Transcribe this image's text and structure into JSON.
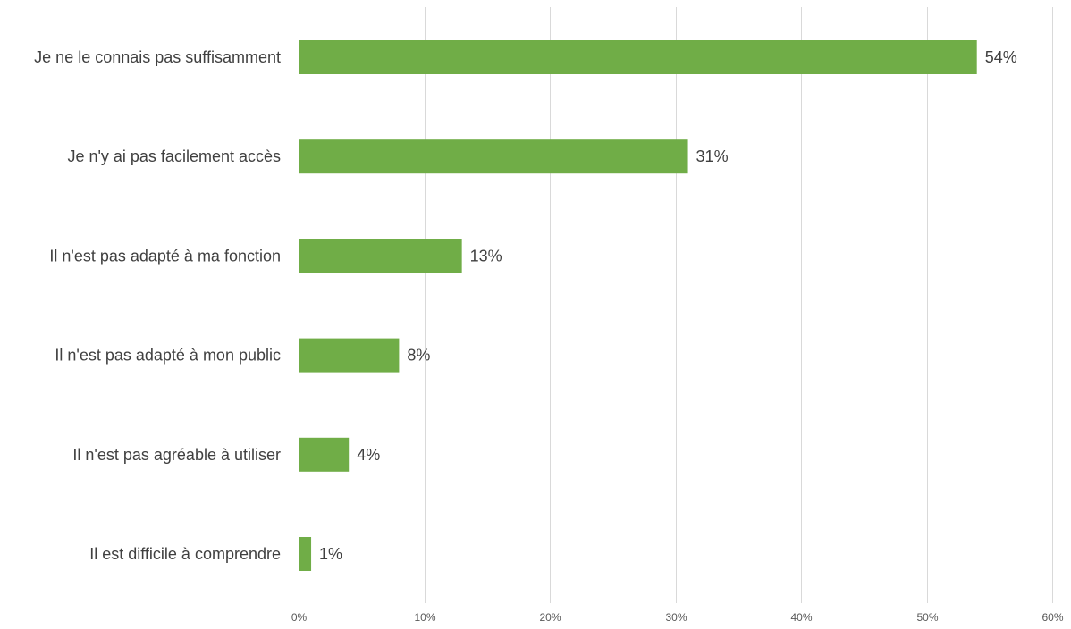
{
  "chart_data": {
    "type": "bar",
    "orientation": "horizontal",
    "categories": [
      "Je ne le connais pas suffisamment",
      "Je n'y ai pas facilement accès",
      "Il n'est pas adapté à ma fonction",
      "Il n'est pas adapté à mon public",
      "Il n'est pas agréable à utiliser",
      "Il est difficile à comprendre"
    ],
    "values": [
      54,
      31,
      13,
      8,
      4,
      1
    ],
    "data_labels": [
      "54%",
      "31%",
      "13%",
      "8%",
      "4%",
      "1%"
    ],
    "xlim": [
      0,
      60
    ],
    "x_ticks": [
      0,
      10,
      20,
      30,
      40,
      50,
      60
    ],
    "x_tick_labels": [
      "0%",
      "10%",
      "20%",
      "30%",
      "40%",
      "50%",
      "60%"
    ],
    "title": "",
    "xlabel": "",
    "ylabel": "",
    "grid": true,
    "legend": "none",
    "bar_color": "#70ad47"
  }
}
